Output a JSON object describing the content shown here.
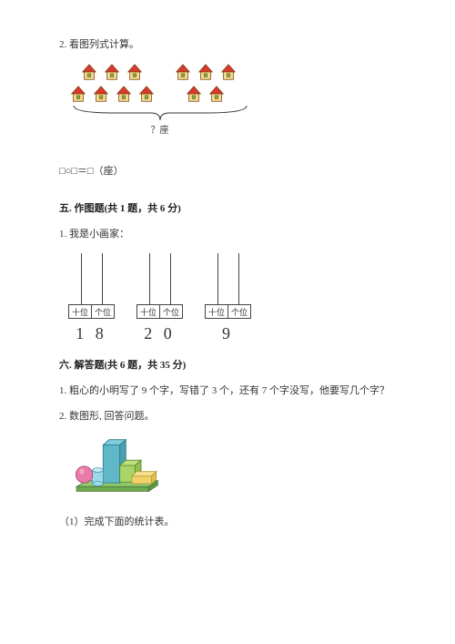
{
  "q2": {
    "title": "2. 看图列式计算。",
    "house_colors": {
      "roof": "#d93a2b",
      "wall": "#f5d98a",
      "window": "#6fb04f",
      "outline": "#7a3e13"
    },
    "left_group": {
      "row1": 3,
      "row2": 4
    },
    "right_group": {
      "row1": 3,
      "row2": 2
    },
    "brace_label": "？座",
    "expression": "□○□＝□（座）"
  },
  "section5": {
    "heading": "五. 作图题(共 1 题，共 6 分)",
    "q1": "1. 我是小画家：",
    "place_labels": [
      "十位",
      "个位"
    ],
    "numbers": [
      "1 8",
      "2 0",
      "9"
    ],
    "abacus_count": 3
  },
  "section6": {
    "heading": "六. 解答题(共 6 题，共 35 分)",
    "q1": "1. 粗心的小明写了 9 个字，写错了 3 个，还有 7 个字没写，他要写几个字？",
    "q2": "2. 数图形, 回答问题。",
    "shapes": {
      "sphere_color": "#e87ba8",
      "tall_cuboid_color": "#5fb8c9",
      "cube_color": "#a8d468",
      "flat_cuboid_color": "#f2d36b",
      "cylinder_color": "#9fd9e8",
      "base_color": "#8fc96b"
    },
    "sub1": "（1）完成下面的统计表。"
  }
}
